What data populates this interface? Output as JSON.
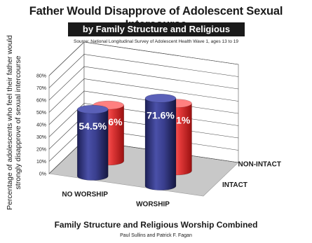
{
  "chart_data": {
    "type": "bar",
    "title": "Father Would Disapprove of Adolescent Sexual Intercourse",
    "subtitle": "by Family Structure and Religious Worship",
    "source": "Source: National Longitudinal Survey of Adolescent Health Wave 1, ages 13 to 19",
    "ylabel": "Percentage of adolescents who feel their father would strongly disapprove of sexual intercourse",
    "xlabel": "Family Structure and Religious Worship Combined",
    "credit": "Paul Sullins and Patrick F. Fagan",
    "categories": [
      "NO WORSHIP",
      "WORSHIP"
    ],
    "series": [
      {
        "name": "INTACT",
        "values": [
          54.5,
          71.6
        ]
      },
      {
        "name": "NON-INTACT",
        "values": [
          45.6,
          55.1
        ]
      }
    ],
    "value_labels": [
      [
        "54.5%",
        "71.6%"
      ],
      [
        "45.6%",
        "55.1%"
      ]
    ],
    "ylim": [
      0,
      80
    ],
    "yticks": [
      "0%",
      "10%",
      "20%",
      "30%",
      "40%",
      "50%",
      "60%",
      "70%",
      "80%"
    ],
    "grid": true,
    "colors": {
      "INTACT": "#3a3f8f",
      "NON-INTACT": "#e53b3b",
      "floor": "#c8c8c8"
    }
  }
}
